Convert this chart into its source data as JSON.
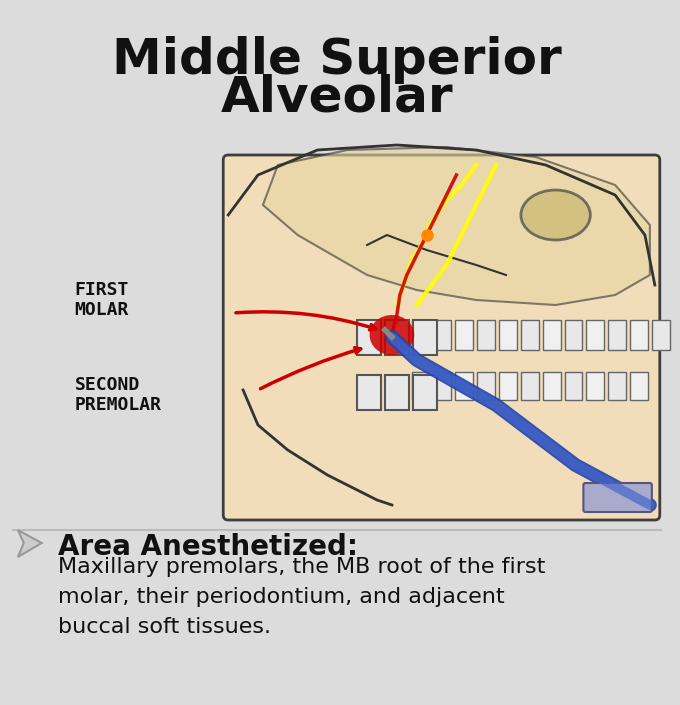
{
  "title_line1": "Middle Superior",
  "title_line2": "Alveolar",
  "title_fontsize": 36,
  "title_color": "#111111",
  "background_color": "#dcdcdc",
  "label1_text": "FIRST\nMOLAR",
  "label2_text": "SECOND\nPREMOLAR",
  "label_fontsize": 13,
  "label_color": "#111111",
  "area_title": "Area Anesthetized:",
  "area_title_fontsize": 20,
  "area_body": "Maxillary premolars, the MB root of the first\nmolar, their periodontium, and adjacent\nbuccal soft tissues.",
  "area_body_fontsize": 16,
  "arrow_color": "#cc0000",
  "divider_color": "#bbbbbb",
  "arrow_icon_color": "#dddddd"
}
